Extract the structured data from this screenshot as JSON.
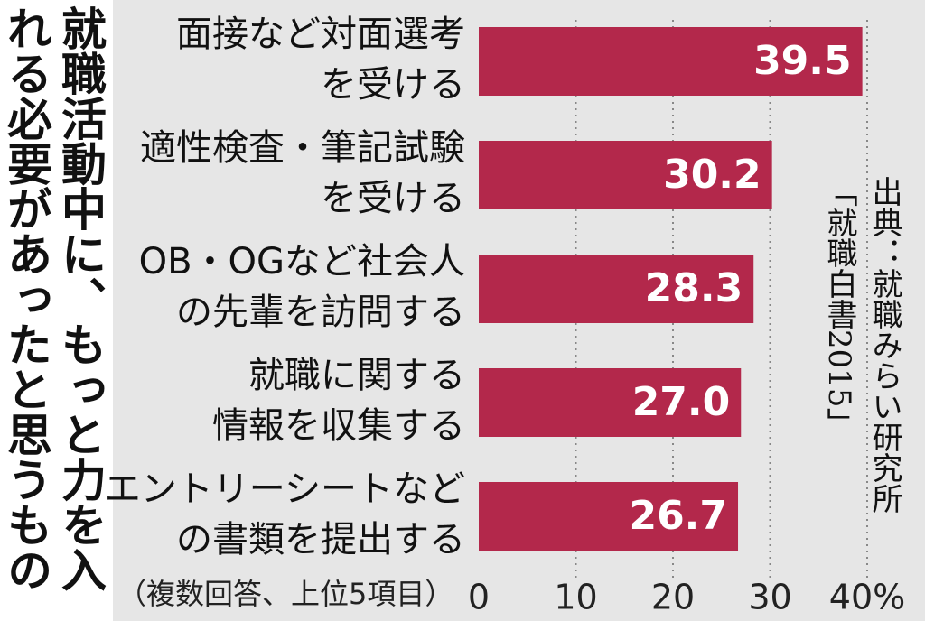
{
  "chart_data": {
    "type": "bar",
    "orientation": "horizontal",
    "title": [
      "就職活動中に、もっと力を入",
      "れる必要があったと思うもの"
    ],
    "note": "（複数回答、上位5項目）",
    "source": [
      "出典：就職みらい研究所",
      "「就職白書2015」"
    ],
    "categories": [
      [
        "面接など対面選考",
        "を受ける"
      ],
      [
        "適性検査・筆記試験",
        "を受ける"
      ],
      [
        "OB・OGなど社会人",
        "の先輩を訪問する"
      ],
      [
        "就職に関する",
        "情報を収集する"
      ],
      [
        "エントリーシートなど",
        "の書類を提出する"
      ]
    ],
    "values": [
      39.5,
      30.2,
      28.3,
      27.0,
      26.7
    ],
    "value_labels": [
      "39.5",
      "30.2",
      "28.3",
      "27.0",
      "26.7"
    ],
    "color": "#b3284b",
    "xlim": [
      0,
      40
    ],
    "xticks": [
      0,
      10,
      20,
      30,
      {
        "value": 40,
        "label": "40%"
      }
    ],
    "grid": true
  }
}
